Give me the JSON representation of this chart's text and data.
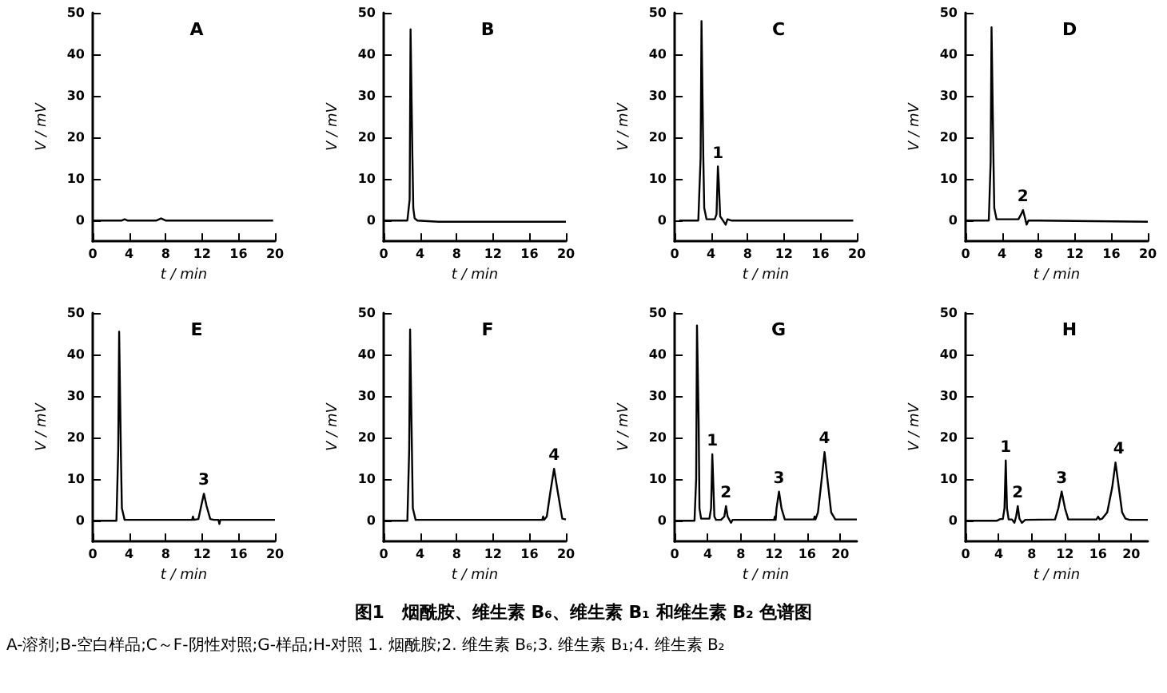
{
  "chart_data": [
    {
      "type": "line",
      "title": "A",
      "xlabel": "t / min",
      "ylabel": "V / mV",
      "xlim": [
        0,
        20
      ],
      "xticks": [
        0,
        4,
        8,
        12,
        16,
        20
      ],
      "ylim": [
        -5,
        50
      ],
      "yticks": [
        0,
        10,
        20,
        30,
        40,
        50
      ],
      "line_style": "solid",
      "series": [
        {
          "color": "#000000",
          "x": [
            0,
            3.2,
            3.5,
            3.8,
            7,
            7.5,
            8,
            19.8
          ],
          "values": [
            0,
            0,
            0.3,
            0,
            0,
            0.5,
            0,
            0
          ]
        }
      ]
    },
    {
      "type": "line",
      "title": "B",
      "xlabel": "t / min",
      "ylabel": "V / mV",
      "xlim": [
        0,
        20
      ],
      "xticks": [
        0,
        4,
        8,
        12,
        16,
        20
      ],
      "ylim": [
        -5,
        50
      ],
      "yticks": [
        0,
        10,
        20,
        30,
        40,
        50
      ],
      "line_style": "solid",
      "series": [
        {
          "color": "#000000",
          "x": [
            0,
            2.6,
            2.85,
            2.95,
            3.05,
            3.15,
            3.25,
            3.4,
            3.7,
            6,
            20
          ],
          "values": [
            0,
            0,
            5,
            46,
            46,
            16,
            3,
            0.5,
            0,
            -0.3,
            -0.3
          ]
        }
      ]
    },
    {
      "type": "line",
      "title": "C",
      "xlabel": "t / min",
      "ylabel": "V / mV",
      "xlim": [
        0,
        20
      ],
      "xticks": [
        0,
        4,
        8,
        12,
        16,
        20
      ],
      "ylim": [
        -5,
        50
      ],
      "yticks": [
        0,
        10,
        20,
        30,
        40,
        50
      ],
      "line_style": "solid",
      "annotations": [
        {
          "text": "1",
          "x": 4.75,
          "y": 13
        }
      ],
      "series": [
        {
          "color": "#000000",
          "x": [
            0.5,
            2.6,
            2.85,
            2.95,
            3.05,
            3.15,
            3.25,
            3.5,
            4.4,
            4.6,
            4.75,
            4.85,
            5.0,
            5.3,
            5.6,
            5.8,
            6.2,
            7,
            19.6
          ],
          "values": [
            0,
            0,
            15,
            48,
            48,
            15,
            3,
            0.3,
            0.3,
            1.5,
            13,
            9,
            1,
            0,
            -1,
            0.3,
            0,
            0,
            0
          ]
        }
      ]
    },
    {
      "type": "line",
      "title": "D",
      "xlabel": "t / min",
      "ylabel": "V / mV",
      "xlim": [
        0,
        20
      ],
      "xticks": [
        0,
        4,
        8,
        12,
        16,
        20
      ],
      "ylim": [
        -5,
        50
      ],
      "yticks": [
        0,
        10,
        20,
        30,
        40,
        50
      ],
      "line_style": "solid",
      "annotations": [
        {
          "text": "2",
          "x": 6.3,
          "y": 2.5
        }
      ],
      "series": [
        {
          "color": "#000000",
          "x": [
            0,
            2.55,
            2.75,
            2.85,
            2.95,
            3.05,
            3.15,
            3.4,
            5.8,
            6.1,
            6.3,
            6.5,
            6.7,
            6.9,
            8,
            20
          ],
          "values": [
            0,
            0,
            14,
            46.5,
            46.5,
            16,
            3,
            0.3,
            0.3,
            1.5,
            2.5,
            0.8,
            -1,
            0,
            0,
            -0.3
          ]
        }
      ]
    },
    {
      "type": "line",
      "title": "E",
      "xlabel": "t / min",
      "ylabel": "V / mV",
      "xlim": [
        0,
        20
      ],
      "xticks": [
        0,
        4,
        8,
        12,
        16,
        20
      ],
      "ylim": [
        -5,
        50
      ],
      "yticks": [
        0,
        10,
        20,
        30,
        40,
        50
      ],
      "line_style": "solid",
      "annotations": [
        {
          "text": "3",
          "x": 12.2,
          "y": 6.5
        }
      ],
      "series": [
        {
          "color": "#000000",
          "x": [
            0,
            2.6,
            2.8,
            2.9,
            3.0,
            3.1,
            3.2,
            3.5,
            10.9,
            11.0,
            11.1,
            11.6,
            11.9,
            12.2,
            12.5,
            12.9,
            13.3,
            13.8,
            13.9,
            14.0,
            20
          ],
          "values": [
            0,
            0,
            17,
            45.5,
            45.5,
            15,
            3,
            0.2,
            0.2,
            1,
            0.2,
            0.4,
            3.5,
            6.5,
            3.5,
            0.4,
            0.2,
            0.2,
            -0.8,
            0.2,
            0.2
          ]
        }
      ]
    },
    {
      "type": "line",
      "title": "F",
      "xlabel": "t / min",
      "ylabel": "V / mV",
      "xlim": [
        0,
        20
      ],
      "xticks": [
        0,
        4,
        8,
        12,
        16,
        20
      ],
      "ylim": [
        -5,
        50
      ],
      "yticks": [
        0,
        10,
        20,
        30,
        40,
        50
      ],
      "line_style": "solid",
      "annotations": [
        {
          "text": "4",
          "x": 18.7,
          "y": 12.5
        }
      ],
      "series": [
        {
          "color": "#000000",
          "x": [
            0,
            2.6,
            2.8,
            2.9,
            3.0,
            3.1,
            3.2,
            3.5,
            17.4,
            17.5,
            17.6,
            17.9,
            18.3,
            18.7,
            19.1,
            19.6,
            20
          ],
          "values": [
            0,
            0,
            17,
            46,
            46,
            17,
            3,
            0.2,
            0.2,
            1,
            0.2,
            1,
            7,
            12.5,
            7,
            0.5,
            0.3
          ]
        }
      ]
    },
    {
      "type": "line",
      "title": "G",
      "xlabel": "t / min",
      "ylabel": "V / mV",
      "xlim": [
        0,
        22
      ],
      "xticks": [
        0,
        4,
        8,
        12,
        16,
        20
      ],
      "ylim": [
        -5,
        50
      ],
      "yticks": [
        0,
        10,
        20,
        30,
        40,
        50
      ],
      "line_style": "solid",
      "annotations": [
        {
          "text": "1",
          "x": 4.55,
          "y": 16
        },
        {
          "text": "2",
          "x": 6.2,
          "y": 3.5
        },
        {
          "text": "3",
          "x": 12.6,
          "y": 7
        },
        {
          "text": "4",
          "x": 18.1,
          "y": 16.5
        }
      ],
      "series": [
        {
          "color": "#000000",
          "x": [
            0,
            2.4,
            2.6,
            2.7,
            2.8,
            2.9,
            3.0,
            3.2,
            4.2,
            4.4,
            4.55,
            4.65,
            4.8,
            5.0,
            5.6,
            6.0,
            6.2,
            6.4,
            6.8,
            7.0,
            12.0,
            12.1,
            12.2,
            12.3,
            12.6,
            12.9,
            13.3,
            16.8,
            16.9,
            17.0,
            17.3,
            17.7,
            18.1,
            18.5,
            18.9,
            19.4,
            22
          ],
          "values": [
            0,
            0,
            10,
            47,
            47,
            24,
            3,
            0.5,
            0.5,
            3,
            16,
            10,
            1,
            0.2,
            0.2,
            1,
            3.5,
            1,
            -0.5,
            0.2,
            0.2,
            1,
            0.2,
            3,
            7,
            3,
            0.3,
            0.3,
            1,
            0.3,
            2,
            9,
            16.5,
            9,
            2,
            0.3,
            0.3
          ]
        }
      ]
    },
    {
      "type": "line",
      "title": "H",
      "xlabel": "t / min",
      "ylabel": "V / mV",
      "xlim": [
        0,
        22
      ],
      "xticks": [
        0,
        4,
        8,
        12,
        16,
        20
      ],
      "ylim": [
        -5,
        50
      ],
      "yticks": [
        0,
        10,
        20,
        30,
        40,
        50
      ],
      "line_style": "solid",
      "annotations": [
        {
          "text": "1",
          "x": 4.85,
          "y": 14.5
        },
        {
          "text": "2",
          "x": 6.3,
          "y": 3.5
        },
        {
          "text": "3",
          "x": 11.6,
          "y": 7
        },
        {
          "text": "4",
          "x": 18.5,
          "y": 14
        }
      ],
      "series": [
        {
          "color": "#000000",
          "x": [
            0,
            3.8,
            4.2,
            4.5,
            4.7,
            4.85,
            5.0,
            5.2,
            5.6,
            5.9,
            6.1,
            6.3,
            6.5,
            6.8,
            7.2,
            10.8,
            11.2,
            11.6,
            12.0,
            12.4,
            15.8,
            16.0,
            16.2,
            16.5,
            17.1,
            17.7,
            18.1,
            18.5,
            18.9,
            19.3,
            19.8,
            22
          ],
          "values": [
            0,
            0,
            0.4,
            0.4,
            3,
            14.5,
            3,
            0.3,
            0.3,
            -0.5,
            1,
            3.5,
            0.5,
            -0.5,
            0.2,
            0.3,
            3,
            7,
            3,
            0.3,
            0.3,
            1,
            0.3,
            0.5,
            2,
            8,
            14,
            8,
            2,
            0.5,
            0.2,
            0.2
          ]
        }
      ]
    },
    {
      "type": "other",
      "title": "图1　烟酰胺、维生素 B₆、维生素 B₁ 和维生素 B₂ 色谱图",
      "annotations": [
        "A-溶剂;B-空白样品;C～F-阴性对照;G-样品;H-对照 1. 烟酰胺;2. 维生素 B₆;3. 维生素 B₁;4. 维生素 B₂"
      ]
    }
  ]
}
